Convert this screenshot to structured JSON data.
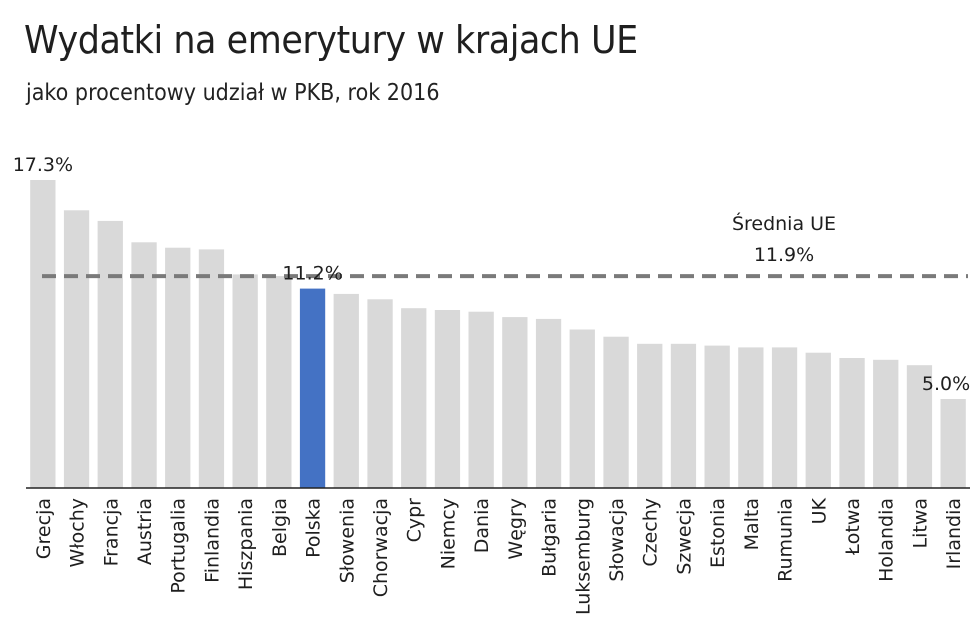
{
  "title": "Wydatki na emerytury w krajach UE",
  "subtitle": "jako procentowy udział w PKB, rok 2016",
  "colors": {
    "bar": "#d9d9d9",
    "highlight": "#4472c4",
    "average_line": "#7a7a7a",
    "axis": "#222222"
  },
  "chart_data": {
    "type": "bar",
    "title": "Wydatki na emerytury w krajach UE",
    "subtitle": "jako procentowy udział w PKB, rok 2016",
    "categories": [
      "Grecja",
      "Włochy",
      "Francja",
      "Austria",
      "Portugalia",
      "Finlandia",
      "Hiszpania",
      "Belgia",
      "Polska",
      "Słowenia",
      "Chorwacja",
      "Cypr",
      "Niemcy",
      "Dania",
      "Węgry",
      "Bułgaria",
      "Luksemburg",
      "Słowacja",
      "Czechy",
      "Szwecja",
      "Estonia",
      "Malta",
      "Rumunia",
      "UK",
      "Łotwa",
      "Holandia",
      "Litwa",
      "Irlandia"
    ],
    "values": [
      17.3,
      15.6,
      15.0,
      13.8,
      13.5,
      13.4,
      12.0,
      11.9,
      11.2,
      10.9,
      10.6,
      10.1,
      10.0,
      9.9,
      9.6,
      9.5,
      8.9,
      8.5,
      8.1,
      8.1,
      8.0,
      7.9,
      7.9,
      7.6,
      7.3,
      7.2,
      6.9,
      5.0
    ],
    "highlight_category": "Polska",
    "data_labels": [
      {
        "category": "Grecja",
        "text": "17.3%"
      },
      {
        "category": "Polska",
        "text": "11.2%"
      },
      {
        "category": "Irlandia",
        "text": "5.0%"
      }
    ],
    "average": {
      "label": "Średnia UE",
      "value": 11.9,
      "text": "11.9%"
    },
    "ylim": [
      0,
      17.3
    ],
    "grid": false,
    "legend": false
  }
}
